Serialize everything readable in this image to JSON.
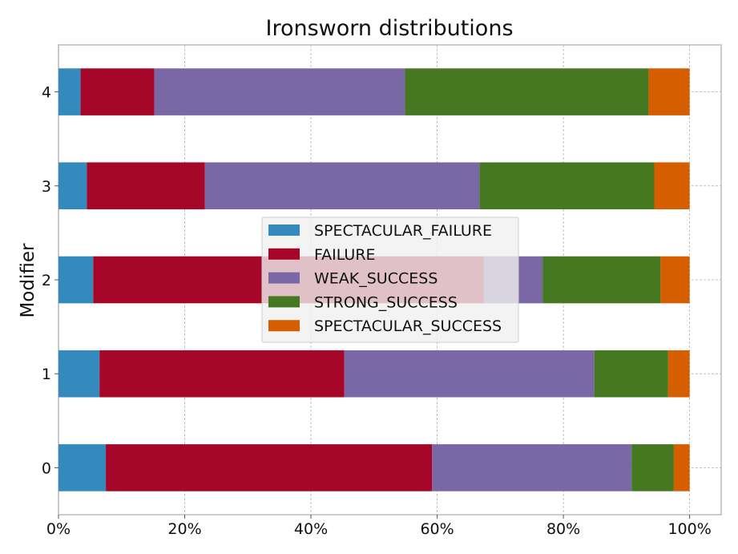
{
  "chart_data": {
    "type": "bar",
    "orientation": "horizontal",
    "stacked": true,
    "title": "Ironsworn distributions",
    "xlabel": "",
    "ylabel": "Modifier",
    "categories": [
      "0",
      "1",
      "2",
      "3",
      "4"
    ],
    "xlim": [
      0,
      1.05
    ],
    "xticks": [
      0,
      0.2,
      0.4,
      0.6,
      0.8,
      1.0
    ],
    "xtick_labels": [
      "0%",
      "20%",
      "40%",
      "60%",
      "80%",
      "100%"
    ],
    "grid": true,
    "legend_position": "center",
    "series": [
      {
        "name": "SPECTACULAR_FAILURE",
        "color": "#348abd",
        "values": [
          0.075,
          0.065,
          0.055,
          0.045,
          0.035
        ]
      },
      {
        "name": "FAILURE",
        "color": "#a60628",
        "values": [
          0.517,
          0.388,
          0.619,
          0.187,
          0.117
        ]
      },
      {
        "name": "WEAK_SUCCESS",
        "color": "#7a68a6",
        "values": [
          0.316,
          0.396,
          0.093,
          0.435,
          0.397
        ]
      },
      {
        "name": "STRONG_SUCCESS",
        "color": "#467821",
        "values": [
          0.067,
          0.117,
          0.187,
          0.277,
          0.386
        ]
      },
      {
        "name": "SPECTACULAR_SUCCESS",
        "color": "#d55e00",
        "values": [
          0.025,
          0.034,
          0.046,
          0.056,
          0.065
        ]
      }
    ]
  }
}
